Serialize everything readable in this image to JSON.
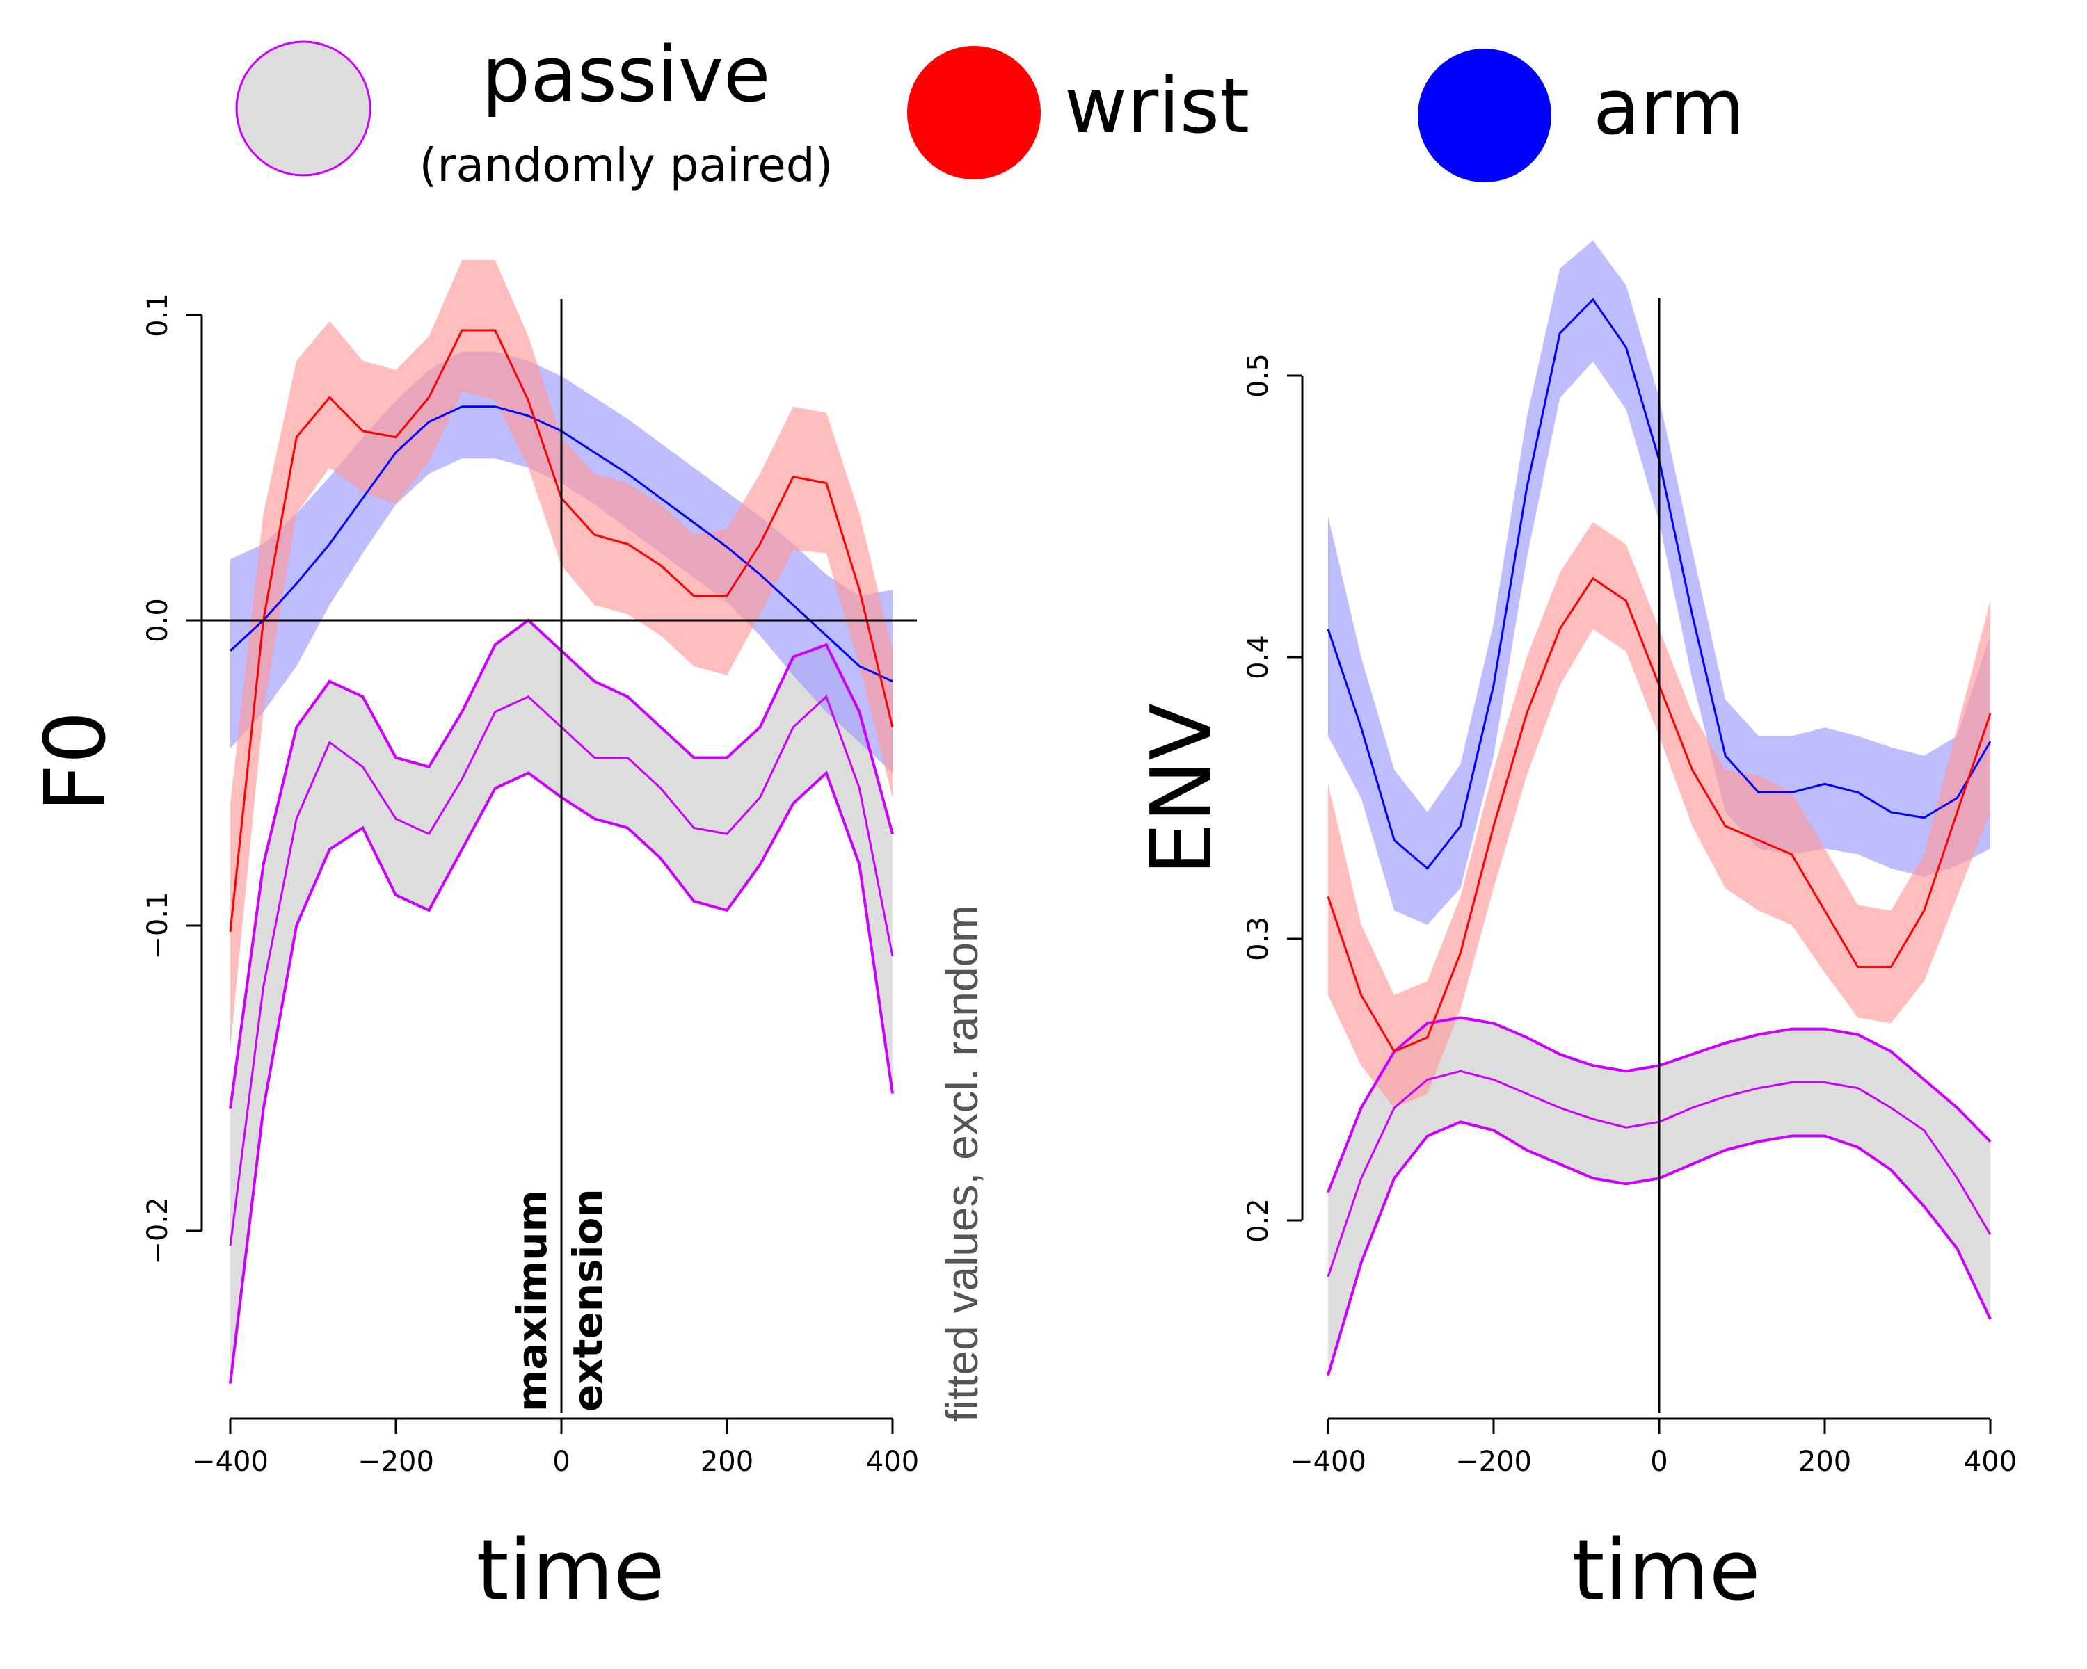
{
  "legend": [
    {
      "name": "passive",
      "sub": "(randomly paired)",
      "fill": "#dddddd",
      "stroke": "#cc00ff"
    },
    {
      "name": "wrist",
      "fill": "#ff0000"
    },
    {
      "name": "arm",
      "fill": "#0000ff"
    }
  ],
  "colors": {
    "passive_band": "#dddddd",
    "passive_line": "#cc00ff",
    "wrist_band": "#ff9999",
    "wrist_line": "#ff0000",
    "arm_band": "#9999ff",
    "arm_line": "#0000ff"
  },
  "chart_data": [
    {
      "type": "line",
      "ylabel": "F0",
      "xlabel": "time",
      "xlim": [
        -400,
        400
      ],
      "ylim": [
        -0.26,
        0.1
      ],
      "xticks": [
        -400,
        -200,
        0,
        200,
        400
      ],
      "xtick_labels": [
        "−400",
        "−200",
        "0",
        "200",
        "400"
      ],
      "yticks": [
        -0.2,
        -0.1,
        0.0,
        0.1
      ],
      "ytick_labels": [
        "−0.2",
        "−0.1",
        "0.0",
        "0.1"
      ],
      "hline": 0,
      "vline": 0,
      "annotations": [
        "maximum",
        "extension"
      ],
      "side_note": "fitted values, excl. random",
      "x": [
        -400,
        -360,
        -320,
        -280,
        -240,
        -200,
        -160,
        -120,
        -80,
        -40,
        0,
        40,
        80,
        120,
        160,
        200,
        240,
        280,
        320,
        360,
        400
      ],
      "series": [
        {
          "name": "passive",
          "values": [
            -0.205,
            -0.12,
            -0.065,
            -0.04,
            -0.048,
            -0.065,
            -0.07,
            -0.052,
            -0.03,
            -0.025,
            -0.035,
            -0.045,
            -0.045,
            -0.055,
            -0.068,
            -0.07,
            -0.058,
            -0.035,
            -0.025,
            -0.055,
            -0.11
          ],
          "lower": [
            -0.25,
            -0.16,
            -0.1,
            -0.075,
            -0.068,
            -0.09,
            -0.095,
            -0.075,
            -0.055,
            -0.05,
            -0.058,
            -0.065,
            -0.068,
            -0.078,
            -0.092,
            -0.095,
            -0.08,
            -0.06,
            -0.05,
            -0.08,
            -0.155
          ],
          "upper": [
            -0.16,
            -0.08,
            -0.035,
            -0.02,
            -0.025,
            -0.045,
            -0.048,
            -0.03,
            -0.008,
            0.0,
            -0.01,
            -0.02,
            -0.025,
            -0.035,
            -0.045,
            -0.045,
            -0.035,
            -0.012,
            -0.008,
            -0.03,
            -0.07
          ]
        },
        {
          "name": "wrist",
          "values": [
            -0.102,
            0.0,
            0.06,
            0.073,
            0.062,
            0.06,
            0.073,
            0.095,
            0.095,
            0.072,
            0.04,
            0.028,
            0.025,
            0.018,
            0.008,
            0.008,
            0.025,
            0.047,
            0.045,
            0.01,
            -0.035
          ],
          "lower": [
            -0.14,
            -0.03,
            0.035,
            0.05,
            0.042,
            0.038,
            0.052,
            0.075,
            0.072,
            0.05,
            0.018,
            0.005,
            0.002,
            -0.005,
            -0.015,
            -0.018,
            0.002,
            0.023,
            0.022,
            -0.015,
            -0.058
          ],
          "upper": [
            -0.06,
            0.035,
            0.085,
            0.098,
            0.085,
            0.082,
            0.093,
            0.118,
            0.118,
            0.093,
            0.06,
            0.048,
            0.045,
            0.038,
            0.028,
            0.03,
            0.048,
            0.07,
            0.068,
            0.035,
            -0.01
          ]
        },
        {
          "name": "arm",
          "values": [
            -0.01,
            0.0,
            0.012,
            0.025,
            0.04,
            0.055,
            0.065,
            0.07,
            0.07,
            0.067,
            0.062,
            0.055,
            0.048,
            0.04,
            0.032,
            0.024,
            0.015,
            0.005,
            -0.005,
            -0.015,
            -0.02
          ],
          "lower": [
            -0.042,
            -0.03,
            -0.015,
            0.005,
            0.022,
            0.038,
            0.048,
            0.053,
            0.053,
            0.05,
            0.045,
            0.038,
            0.03,
            0.022,
            0.014,
            0.006,
            -0.005,
            -0.018,
            -0.03,
            -0.04,
            -0.05
          ],
          "upper": [
            0.02,
            0.025,
            0.035,
            0.047,
            0.06,
            0.072,
            0.082,
            0.088,
            0.088,
            0.085,
            0.08,
            0.073,
            0.066,
            0.058,
            0.05,
            0.042,
            0.034,
            0.025,
            0.015,
            0.008,
            0.01
          ]
        }
      ]
    },
    {
      "type": "line",
      "ylabel": "ENV",
      "xlabel": "time",
      "xlim": [
        -400,
        400
      ],
      "ylim": [
        0.13,
        0.55
      ],
      "xticks": [
        -400,
        -200,
        0,
        200,
        400
      ],
      "xtick_labels": [
        "−400",
        "−200",
        "0",
        "200",
        "400"
      ],
      "yticks": [
        0.2,
        0.3,
        0.4,
        0.5
      ],
      "ytick_labels": [
        "0.2",
        "0.3",
        "0.4",
        "0.5"
      ],
      "vline": 0,
      "x": [
        -400,
        -360,
        -320,
        -280,
        -240,
        -200,
        -160,
        -120,
        -80,
        -40,
        0,
        40,
        80,
        120,
        160,
        200,
        240,
        280,
        320,
        360,
        400
      ],
      "series": [
        {
          "name": "passive",
          "values": [
            0.18,
            0.215,
            0.24,
            0.25,
            0.253,
            0.25,
            0.245,
            0.24,
            0.236,
            0.233,
            0.235,
            0.24,
            0.244,
            0.247,
            0.249,
            0.249,
            0.247,
            0.24,
            0.232,
            0.215,
            0.195
          ],
          "lower": [
            0.145,
            0.185,
            0.215,
            0.23,
            0.235,
            0.232,
            0.225,
            0.22,
            0.215,
            0.213,
            0.215,
            0.22,
            0.225,
            0.228,
            0.23,
            0.23,
            0.226,
            0.218,
            0.205,
            0.19,
            0.165
          ],
          "upper": [
            0.21,
            0.24,
            0.26,
            0.27,
            0.272,
            0.27,
            0.265,
            0.259,
            0.255,
            0.253,
            0.255,
            0.259,
            0.263,
            0.266,
            0.268,
            0.268,
            0.266,
            0.26,
            0.25,
            0.24,
            0.228
          ]
        },
        {
          "name": "wrist",
          "values": [
            0.315,
            0.28,
            0.26,
            0.265,
            0.295,
            0.34,
            0.38,
            0.41,
            0.428,
            0.42,
            0.39,
            0.36,
            0.34,
            0.335,
            0.33,
            0.31,
            0.29,
            0.29,
            0.31,
            0.345,
            0.38
          ],
          "lower": [
            0.28,
            0.255,
            0.24,
            0.245,
            0.275,
            0.318,
            0.358,
            0.39,
            0.41,
            0.402,
            0.372,
            0.34,
            0.318,
            0.31,
            0.305,
            0.288,
            0.272,
            0.27,
            0.285,
            0.315,
            0.345
          ],
          "upper": [
            0.355,
            0.305,
            0.28,
            0.285,
            0.315,
            0.36,
            0.4,
            0.43,
            0.448,
            0.44,
            0.41,
            0.38,
            0.36,
            0.358,
            0.352,
            0.332,
            0.312,
            0.31,
            0.33,
            0.375,
            0.42
          ]
        },
        {
          "name": "arm",
          "values": [
            0.41,
            0.375,
            0.335,
            0.325,
            0.34,
            0.39,
            0.46,
            0.515,
            0.527,
            0.51,
            0.47,
            0.415,
            0.365,
            0.352,
            0.352,
            0.355,
            0.352,
            0.345,
            0.343,
            0.35,
            0.37
          ],
          "lower": [
            0.372,
            0.35,
            0.31,
            0.305,
            0.318,
            0.365,
            0.435,
            0.492,
            0.505,
            0.488,
            0.448,
            0.392,
            0.345,
            0.332,
            0.33,
            0.332,
            0.33,
            0.325,
            0.322,
            0.326,
            0.332
          ],
          "upper": [
            0.45,
            0.4,
            0.36,
            0.345,
            0.362,
            0.412,
            0.485,
            0.538,
            0.548,
            0.532,
            0.492,
            0.438,
            0.385,
            0.372,
            0.372,
            0.375,
            0.372,
            0.368,
            0.365,
            0.372,
            0.408
          ]
        }
      ]
    }
  ]
}
